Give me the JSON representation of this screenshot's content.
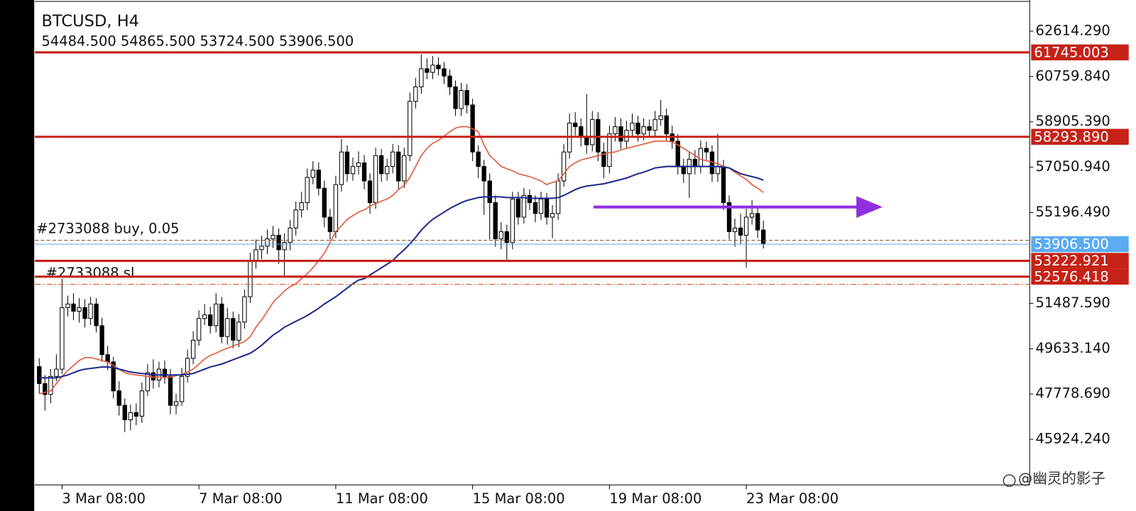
{
  "chart_data": {
    "type": "candlestick",
    "title": "BTCUSD, H4",
    "subtitle": "54484.500 54865.500 53724.500 53906.500",
    "categories": [
      null,
      null,
      null,
      null,
      "3 Mar 08:00",
      null,
      null,
      null,
      null,
      null,
      null,
      null,
      null,
      null,
      null,
      null,
      null,
      null,
      null,
      null,
      null,
      null,
      null,
      null,
      null,
      null,
      null,
      null,
      "7 Mar 08:00",
      null,
      null,
      null,
      null,
      null,
      null,
      null,
      null,
      null,
      null,
      null,
      null,
      null,
      null,
      null,
      null,
      null,
      null,
      null,
      null,
      null,
      null,
      null,
      "11 Mar 08:00",
      null,
      null,
      null,
      null,
      null,
      null,
      null,
      null,
      null,
      null,
      null,
      null,
      null,
      null,
      null,
      null,
      null,
      null,
      null,
      null,
      null,
      null,
      null,
      "15 Mar 08:00",
      null,
      null,
      null,
      null,
      null,
      null,
      null,
      null,
      null,
      null,
      null,
      null,
      null,
      null,
      null,
      null,
      null,
      null,
      null,
      null,
      null,
      null,
      null,
      "19 Mar 08:00",
      null,
      null,
      null,
      null,
      null,
      null,
      null,
      null,
      null,
      null,
      null,
      null,
      null,
      null,
      null,
      null,
      null,
      null,
      null,
      null,
      null,
      null,
      null,
      "23 Mar 08:00",
      null,
      null,
      null
    ],
    "open": [
      48900,
      48204,
      47761,
      48500,
      48796,
      51311,
      51459,
      51163,
      51311,
      50867,
      51459,
      50572,
      49388,
      49092,
      47908,
      47317,
      46725,
      47021,
      46873,
      47908,
      48648,
      48352,
      48796,
      48500,
      47317,
      47465,
      48500,
      49240,
      49980,
      50867,
      51015,
      50572,
      51459,
      50128,
      50867,
      49980,
      50720,
      51755,
      53235,
      53678,
      53826,
      54122,
      54270,
      53678,
      53974,
      54566,
      55306,
      55602,
      56637,
      56933,
      56193,
      55010,
      54418,
      56341,
      57673,
      56785,
      57081,
      57229,
      56489,
      55602,
      57525,
      56785,
      57081,
      57673,
      56489,
      57525,
      59744,
      60336,
      61076,
      60928,
      61224,
      61076,
      60780,
      60336,
      59449,
      60188,
      59596,
      57673,
      57081,
      56489,
      55602,
      54122,
      54418,
      53974,
      55750,
      55010,
      55898,
      55602,
      55158,
      55750,
      55010,
      55158,
      56489,
      57673,
      58857,
      58709,
      58265,
      57969,
      59005,
      57673,
      57081,
      58413,
      58709,
      58117,
      58561,
      58857,
      58413,
      58709,
      58561,
      59005,
      59153,
      58413,
      58117,
      57081,
      56785,
      57377,
      57081,
      57821,
      57673,
      56785,
      57081,
      55602,
      54418,
      54566,
      54270,
      55010,
      55158,
      54484.5
    ],
    "high": [
      49250,
      48550,
      48800,
      49400,
      52495,
      51800,
      51900,
      51700,
      51650,
      51750,
      51700,
      50900,
      49750,
      49300,
      48300,
      47600,
      47350,
      47400,
      48250,
      49000,
      49200,
      49100,
      49150,
      48800,
      47800,
      48850,
      49600,
      50350,
      51200,
      51450,
      51350,
      51900,
      51750,
      51300,
      51150,
      51050,
      52050,
      53550,
      54100,
      54250,
      54500,
      54650,
      54550,
      54350,
      54900,
      55650,
      56050,
      57000,
      57300,
      57250,
      56500,
      55350,
      56700,
      58200,
      57950,
      57450,
      57700,
      57550,
      56800,
      57850,
      57800,
      57400,
      58000,
      57950,
      57850,
      60100,
      60700,
      61668,
      61500,
      61600,
      61550,
      61350,
      61050,
      60600,
      60500,
      60450,
      59850,
      57950,
      57350,
      56800,
      55900,
      54800,
      54700,
      56050,
      56050,
      56200,
      56150,
      55900,
      56050,
      56000,
      55500,
      56800,
      58000,
      59250,
      59300,
      59050,
      60040,
      59350,
      59300,
      58050,
      58750,
      59100,
      59050,
      58950,
      59250,
      59150,
      59050,
      59000,
      59350,
      59803,
      59450,
      58750,
      58400,
      57400,
      57700,
      57750,
      58150,
      58100,
      57950,
      58413,
      57350,
      55900,
      54950,
      55150,
      55350,
      55700,
      55450,
      54865.5
    ],
    "low": [
      47800,
      47100,
      47400,
      48300,
      48600,
      50950,
      50800,
      50700,
      50500,
      50600,
      50300,
      49100,
      48750,
      47600,
      46900,
      46222,
      46300,
      46500,
      46600,
      47700,
      48000,
      48050,
      48200,
      46950,
      46950,
      47300,
      48250,
      49000,
      49750,
      50600,
      50250,
      50300,
      49850,
      49800,
      49650,
      49700,
      50450,
      51500,
      52900,
      53300,
      53500,
      53750,
      53100,
      52600,
      53650,
      54250,
      55000,
      55300,
      56350,
      55900,
      54600,
      54100,
      54150,
      56050,
      56450,
      56500,
      56750,
      56150,
      55150,
      55350,
      56450,
      56500,
      56800,
      56150,
      56200,
      57300,
      59450,
      60050,
      60650,
      60650,
      60800,
      60450,
      60000,
      59150,
      59150,
      59250,
      57300,
      56600,
      55100,
      54100,
      53800,
      53700,
      53235,
      53700,
      54700,
      54750,
      55300,
      54800,
      54900,
      54700,
      54150,
      54900,
      56250,
      57400,
      58350,
      57900,
      57600,
      57700,
      57300,
      56600,
      56800,
      58100,
      57800,
      57850,
      58250,
      58100,
      58150,
      58250,
      58300,
      58750,
      58100,
      57800,
      56750,
      56400,
      55800,
      56750,
      56800,
      57350,
      56450,
      56450,
      55300,
      54100,
      53800,
      53900,
      52939,
      54700,
      54150,
      53724.5
    ],
    "close": [
      48204,
      47761,
      48500,
      48796,
      51311,
      51459,
      51163,
      51311,
      50867,
      51459,
      50572,
      49388,
      49092,
      47908,
      47317,
      46725,
      47021,
      46873,
      47908,
      48648,
      48352,
      48796,
      48500,
      47317,
      47465,
      48500,
      49240,
      49980,
      50867,
      51015,
      50572,
      51459,
      50128,
      50867,
      49980,
      50720,
      51755,
      53235,
      53678,
      53826,
      54122,
      54270,
      53678,
      53974,
      54566,
      55306,
      55602,
      56637,
      56933,
      56193,
      55010,
      54418,
      56341,
      57673,
      56785,
      57081,
      57229,
      56489,
      55602,
      57525,
      56785,
      57081,
      57673,
      56489,
      57525,
      59744,
      60336,
      61076,
      60928,
      61224,
      61076,
      60780,
      60336,
      59449,
      60188,
      59596,
      57673,
      57081,
      56489,
      55602,
      54122,
      54418,
      53974,
      55750,
      55010,
      55898,
      55602,
      55158,
      55750,
      55010,
      55158,
      56489,
      57673,
      58857,
      58709,
      58265,
      57969,
      59005,
      57673,
      57081,
      58413,
      58709,
      58117,
      58561,
      58857,
      58413,
      58709,
      58561,
      59005,
      59153,
      58413,
      58117,
      57081,
      56785,
      57377,
      57081,
      57821,
      57673,
      56785,
      57081,
      55602,
      54418,
      54566,
      54270,
      55010,
      55158,
      54484.5,
      53906.5
    ],
    "color_up": "#ffffff",
    "color_down": "#000000",
    "overlays": [
      {
        "color": "#e05a3a",
        "values": [
          47790,
          47849,
          47908,
          48204,
          48500,
          48737,
          48944,
          49151,
          49270,
          49270,
          49210,
          49151,
          49092,
          48944,
          48796,
          48648,
          48589,
          48559,
          48530,
          48500,
          48471,
          48471,
          48441,
          48471,
          48530,
          48589,
          48678,
          48796,
          49003,
          49210,
          49358,
          49447,
          49565,
          49654,
          49743,
          49832,
          49921,
          50128,
          50512,
          50808,
          51163,
          51518,
          51755,
          51992,
          52169,
          52288,
          52495,
          52702,
          52939,
          53235,
          53530,
          53974,
          54418,
          54655,
          54921,
          55069,
          55217,
          55306,
          55454,
          55572,
          55661,
          55750,
          55898,
          56134,
          56312,
          56637,
          57081,
          57525,
          57821,
          58028,
          58147,
          58324,
          58502,
          58650,
          58709,
          58709,
          58620,
          58502,
          57969,
          57525,
          57318,
          57081,
          56993,
          56904,
          56785,
          56726,
          56667,
          56578,
          56489,
          56342,
          56430,
          56489,
          56785,
          57081,
          57229,
          57348,
          57407,
          57466,
          57525,
          57584,
          57644,
          57673,
          57762,
          57821,
          57880,
          57939,
          57999,
          58058,
          58117,
          58117,
          58117,
          58087,
          57969,
          57821,
          57673,
          57525,
          57377,
          57318,
          57259,
          57200,
          57081,
          57022,
          56845,
          56697,
          56549,
          56342,
          56194,
          56016
        ]
      },
      {
        "color": "#1c2a8c",
        "values": [
          48441,
          48441,
          48441,
          48441,
          48500,
          48559,
          48648,
          48737,
          48796,
          48826,
          48855,
          48885,
          48885,
          48855,
          48796,
          48737,
          48678,
          48648,
          48619,
          48589,
          48559,
          48559,
          48559,
          48559,
          48559,
          48559,
          48589,
          48619,
          48707,
          48796,
          48885,
          48944,
          49003,
          49092,
          49181,
          49270,
          49358,
          49447,
          49595,
          49773,
          49980,
          50187,
          50335,
          50512,
          50631,
          50749,
          50867,
          50986,
          51134,
          51282,
          51459,
          51607,
          51755,
          51933,
          52110,
          52288,
          52436,
          52495,
          52643,
          52791,
          52939,
          53087,
          53235,
          53471,
          53678,
          53915,
          54181,
          54477,
          54714,
          54921,
          55069,
          55217,
          55365,
          55483,
          55602,
          55691,
          55750,
          55809,
          55839,
          55839,
          55839,
          55839,
          55809,
          55809,
          55809,
          55809,
          55779,
          55779,
          55779,
          55779,
          55779,
          55809,
          55898,
          56016,
          56134,
          56223,
          56282,
          56312,
          56342,
          56371,
          56430,
          56489,
          56549,
          56608,
          56697,
          56785,
          56845,
          56933,
          57022,
          57052,
          57081,
          57081,
          57081,
          57081,
          57081,
          57081,
          57081,
          57081,
          57081,
          57081,
          57052,
          57022,
          56904,
          56785,
          56726,
          56667,
          56608,
          56519
        ]
      }
    ],
    "ylim": [
      44062,
      63887
    ],
    "yticks": [
      {
        "value": 62614.29,
        "label": "62614.290"
      },
      {
        "value": 60759.84,
        "label": "60759.840"
      },
      {
        "value": 58905.39,
        "label": "58905.390"
      },
      {
        "value": 57050.94,
        "label": "57050.940"
      },
      {
        "value": 55196.49,
        "label": "55196.490"
      },
      {
        "value": 51487.59,
        "label": "51487.590"
      },
      {
        "value": 49633.14,
        "label": "49633.140"
      },
      {
        "value": 47778.69,
        "label": "47778.690"
      },
      {
        "value": 45924.24,
        "label": "45924.240"
      }
    ],
    "levels": [
      61745.003,
      {
        "value": 58293.89,
        "label": "58293.890"
      },
      53222.921,
      52576.418
    ],
    "level_color": "#c62217",
    "bid": {
      "value": 53906.5,
      "label": "53906.500"
    },
    "bid_color": "#5aabf2",
    "orders": [
      {
        "label": "#2733088 buy, 0.05",
        "price": 54064,
        "color": "#8b5a2b"
      },
      {
        "label": "#2733088 sl",
        "price": 52264,
        "color": "#e0602a"
      }
    ],
    "arrow": {
      "price": 55424,
      "color": "#9030e0"
    },
    "watermark": "@幽灵的影子"
  }
}
